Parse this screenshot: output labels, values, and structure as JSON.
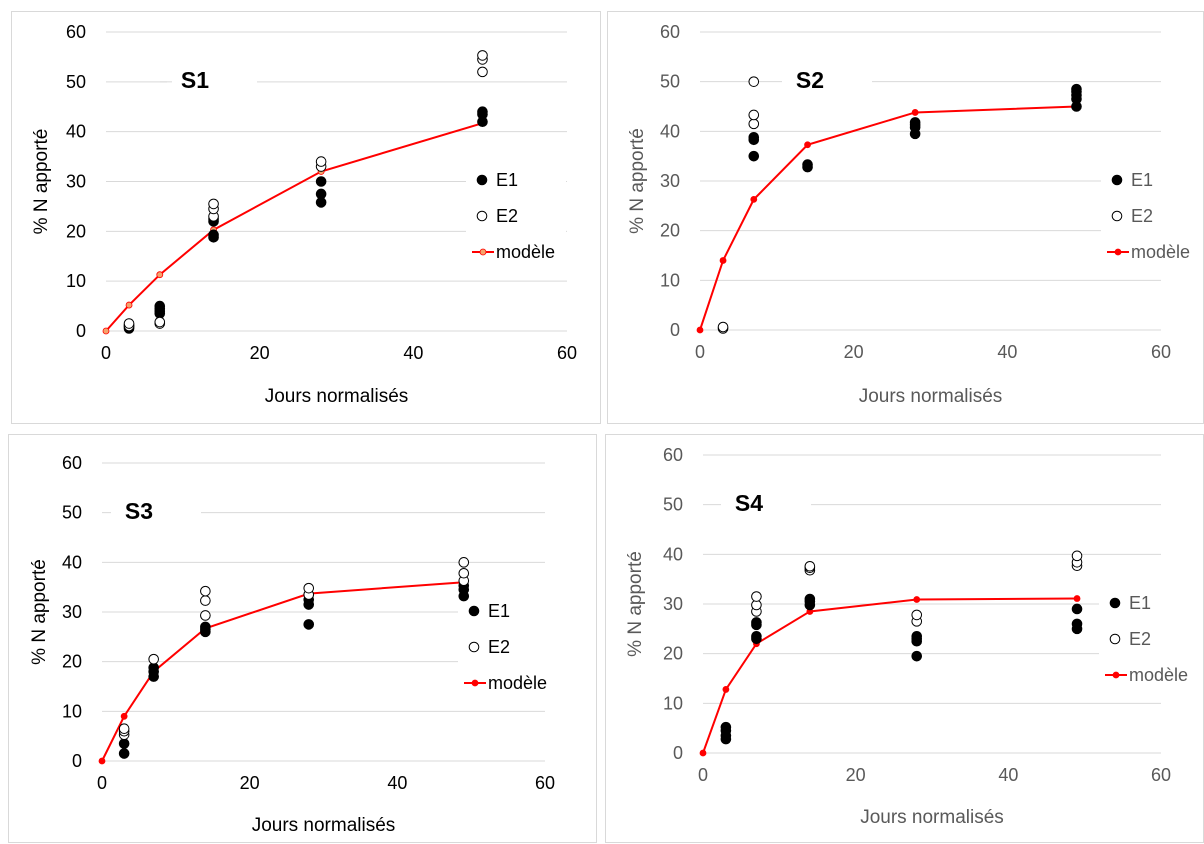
{
  "colors": {
    "e1": "#000000",
    "e2_fill": "#ffffff",
    "e2_stroke": "#000000",
    "model_line": "#ff0000",
    "model_marker_s1": "#f5a36b",
    "grid": "#d9d9d9"
  },
  "chart_data": [
    {
      "type": "scatter",
      "title": "S1",
      "xlabel": "Jours normalisés",
      "ylabel": "% N apporté",
      "xlim": [
        0,
        60
      ],
      "ylim": [
        0,
        60
      ],
      "xticks": [
        "0",
        "20",
        "40",
        "60"
      ],
      "yticks": [
        "0",
        "10",
        "20",
        "30",
        "40",
        "50",
        "60"
      ],
      "grid": "horizontal",
      "legend_position": "right",
      "legend": [
        "E1",
        "E2",
        "modèle"
      ],
      "series": [
        {
          "name": "E1",
          "marker": "filled-circle",
          "points": [
            [
              3,
              0.5
            ],
            [
              3,
              0.8
            ],
            [
              3,
              1.2
            ],
            [
              7,
              3.5
            ],
            [
              7,
              4.0
            ],
            [
              7,
              4.5
            ],
            [
              7,
              5.0
            ],
            [
              14,
              18.8
            ],
            [
              14,
              19.3
            ],
            [
              14,
              22.0
            ],
            [
              14,
              22.5
            ],
            [
              28,
              25.8
            ],
            [
              28,
              27.5
            ],
            [
              28,
              30.0
            ],
            [
              49,
              42.0
            ],
            [
              49,
              43.5
            ],
            [
              49,
              44.0
            ]
          ]
        },
        {
          "name": "E2",
          "marker": "open-circle",
          "points": [
            [
              3,
              1.0
            ],
            [
              3,
              1.5
            ],
            [
              7,
              1.5
            ],
            [
              7,
              1.8
            ],
            [
              14,
              23.0
            ],
            [
              14,
              24.5
            ],
            [
              14,
              25.5
            ],
            [
              28,
              33.0
            ],
            [
              28,
              34.0
            ],
            [
              49,
              52.0
            ],
            [
              49,
              54.5
            ],
            [
              49,
              55.3
            ]
          ]
        },
        {
          "name": "modèle",
          "marker": "line",
          "points": [
            [
              0,
              0
            ],
            [
              3,
              5.2
            ],
            [
              7,
              11.3
            ],
            [
              14,
              20.3
            ],
            [
              28,
              32.0
            ],
            [
              49,
              41.7
            ]
          ]
        }
      ]
    },
    {
      "type": "scatter",
      "title": "S2",
      "xlabel": "Jours normalisés",
      "ylabel": "% N apporté",
      "xlim": [
        0,
        60
      ],
      "ylim": [
        0,
        60
      ],
      "xticks": [
        "0",
        "20",
        "40",
        "60"
      ],
      "yticks": [
        "0",
        "10",
        "20",
        "30",
        "40",
        "50",
        "60"
      ],
      "grid": "horizontal",
      "legend_position": "right",
      "legend": [
        "E1",
        "E2",
        "modèle"
      ],
      "series": [
        {
          "name": "E1",
          "marker": "filled-circle",
          "points": [
            [
              7,
              35.0
            ],
            [
              7,
              38.3
            ],
            [
              7,
              38.8
            ],
            [
              14,
              32.8
            ],
            [
              14,
              33.3
            ],
            [
              28,
              39.5
            ],
            [
              28,
              40.8
            ],
            [
              28,
              41.3
            ],
            [
              28,
              41.8
            ],
            [
              49,
              45.0
            ],
            [
              49,
              46.5
            ],
            [
              49,
              47.3
            ],
            [
              49,
              48.0
            ],
            [
              49,
              48.5
            ]
          ]
        },
        {
          "name": "E2",
          "marker": "open-circle",
          "points": [
            [
              3,
              0.3
            ],
            [
              3,
              0.6
            ],
            [
              7,
              41.5
            ],
            [
              7,
              43.3
            ],
            [
              7,
              50.0
            ]
          ]
        },
        {
          "name": "modèle",
          "marker": "line",
          "points": [
            [
              0,
              0
            ],
            [
              3,
              14.0
            ],
            [
              7,
              26.3
            ],
            [
              14,
              37.3
            ],
            [
              28,
              43.8
            ],
            [
              49,
              45.0
            ]
          ]
        }
      ]
    },
    {
      "type": "scatter",
      "title": "S3",
      "xlabel": "Jours normalisés",
      "ylabel": "% N apporté",
      "xlim": [
        0,
        60
      ],
      "ylim": [
        0,
        60
      ],
      "xticks": [
        "0",
        "20",
        "40",
        "60"
      ],
      "yticks": [
        "0",
        "10",
        "20",
        "30",
        "40",
        "50",
        "60"
      ],
      "grid": "horizontal",
      "legend_position": "right",
      "legend": [
        "E1",
        "E2",
        "modèle"
      ],
      "series": [
        {
          "name": "E1",
          "marker": "filled-circle",
          "points": [
            [
              3,
              1.5
            ],
            [
              3,
              3.5
            ],
            [
              7,
              17.0
            ],
            [
              7,
              18.0
            ],
            [
              7,
              18.8
            ],
            [
              14,
              26.0
            ],
            [
              14,
              26.5
            ],
            [
              14,
              27.0
            ],
            [
              28,
              27.5
            ],
            [
              28,
              31.5
            ],
            [
              28,
              32.5
            ],
            [
              28,
              33.5
            ],
            [
              49,
              33.2
            ],
            [
              49,
              34.5
            ],
            [
              49,
              35.3
            ]
          ]
        },
        {
          "name": "E2",
          "marker": "open-circle",
          "points": [
            [
              3,
              5.3
            ],
            [
              3,
              6.0
            ],
            [
              3,
              6.5
            ],
            [
              7,
              20.5
            ],
            [
              14,
              29.3
            ],
            [
              14,
              32.3
            ],
            [
              14,
              34.2
            ],
            [
              28,
              33.5
            ],
            [
              28,
              34.8
            ],
            [
              49,
              36.3
            ],
            [
              49,
              37.8
            ],
            [
              49,
              40.0
            ]
          ]
        },
        {
          "name": "modèle",
          "marker": "line",
          "points": [
            [
              0,
              0
            ],
            [
              3,
              9.0
            ],
            [
              7,
              18.0
            ],
            [
              14,
              26.7
            ],
            [
              28,
              33.7
            ],
            [
              49,
              36.0
            ]
          ]
        }
      ]
    },
    {
      "type": "scatter",
      "title": "S4",
      "xlabel": "Jours normalisés",
      "ylabel": "% N apporté",
      "xlim": [
        0,
        60
      ],
      "ylim": [
        0,
        60
      ],
      "xticks": [
        "0",
        "20",
        "40",
        "60"
      ],
      "yticks": [
        "0",
        "10",
        "20",
        "30",
        "40",
        "50",
        "60"
      ],
      "grid": "horizontal",
      "legend_position": "right",
      "legend": [
        "E1",
        "E2",
        "modèle"
      ],
      "series": [
        {
          "name": "E1",
          "marker": "filled-circle",
          "points": [
            [
              3,
              2.8
            ],
            [
              3,
              3.5
            ],
            [
              3,
              4.5
            ],
            [
              3,
              5.2
            ],
            [
              7,
              23.0
            ],
            [
              7,
              23.5
            ],
            [
              7,
              25.8
            ],
            [
              7,
              26.3
            ],
            [
              14,
              29.8
            ],
            [
              14,
              30.5
            ],
            [
              14,
              31.0
            ],
            [
              28,
              19.5
            ],
            [
              28,
              22.5
            ],
            [
              28,
              23.0
            ],
            [
              28,
              23.5
            ],
            [
              49,
              25.0
            ],
            [
              49,
              26.0
            ],
            [
              49,
              29.0
            ]
          ]
        },
        {
          "name": "E2",
          "marker": "open-circle",
          "points": [
            [
              7,
              28.5
            ],
            [
              7,
              29.8
            ],
            [
              7,
              31.5
            ],
            [
              14,
              36.8
            ],
            [
              14,
              37.3
            ],
            [
              14,
              37.6
            ],
            [
              28,
              26.5
            ],
            [
              28,
              27.8
            ],
            [
              49,
              37.7
            ],
            [
              49,
              38.4
            ],
            [
              49,
              39.7
            ]
          ]
        },
        {
          "name": "modèle",
          "marker": "line",
          "points": [
            [
              0,
              0
            ],
            [
              3,
              12.8
            ],
            [
              7,
              22.0
            ],
            [
              14,
              28.5
            ],
            [
              28,
              30.9
            ],
            [
              49,
              31.1
            ]
          ]
        }
      ]
    }
  ]
}
